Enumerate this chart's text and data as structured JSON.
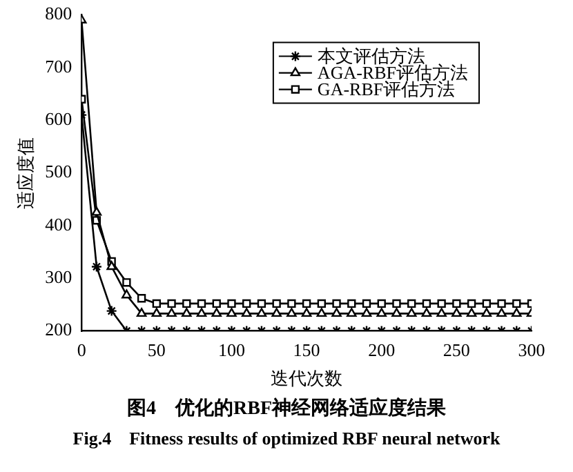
{
  "chart_data": {
    "type": "line",
    "title": "图4　优化的RBF神经网络适应度结果",
    "subtitle": "Fig.4　Fitness results of optimized RBF neural network",
    "xlabel": "迭代次数",
    "ylabel": "适应度值",
    "x": [
      0,
      10,
      20,
      30,
      40,
      50,
      60,
      70,
      80,
      90,
      100,
      110,
      120,
      130,
      140,
      150,
      160,
      170,
      180,
      190,
      200,
      210,
      220,
      230,
      240,
      250,
      260,
      270,
      280,
      290,
      300
    ],
    "xlim": [
      0,
      300
    ],
    "xticks": [
      0,
      50,
      100,
      150,
      200,
      250,
      300
    ],
    "ylim": [
      200,
      800
    ],
    "yticks": [
      200,
      300,
      400,
      500,
      600,
      700,
      800
    ],
    "grid": false,
    "legend": "top right",
    "line_style": "solid",
    "series": [
      {
        "name": "本文评估方法",
        "color": "#000000",
        "marker": "cross",
        "values": [
          610,
          322,
          238,
          200,
          200,
          200,
          200,
          200,
          200,
          200,
          200,
          200,
          200,
          200,
          200,
          200,
          200,
          200,
          200,
          200,
          200,
          200,
          200,
          200,
          200,
          200,
          200,
          200,
          200,
          200,
          200
        ]
      },
      {
        "name": "AGA-RBF评估方法",
        "color": "#000000",
        "marker": "triangle",
        "values": [
          790,
          425,
          322,
          268,
          233,
          233,
          233,
          233,
          233,
          233,
          233,
          233,
          233,
          233,
          233,
          233,
          233,
          233,
          233,
          233,
          233,
          233,
          233,
          233,
          233,
          233,
          233,
          233,
          233,
          233,
          233
        ]
      },
      {
        "name": "GA-RBF评估方法",
        "color": "#000000",
        "marker": "square",
        "values": [
          640,
          410,
          332,
          292,
          262,
          252,
          252,
          252,
          252,
          252,
          252,
          252,
          252,
          252,
          252,
          252,
          252,
          252,
          252,
          252,
          252,
          252,
          252,
          252,
          252,
          252,
          252,
          252,
          252,
          252,
          252
        ]
      }
    ]
  }
}
